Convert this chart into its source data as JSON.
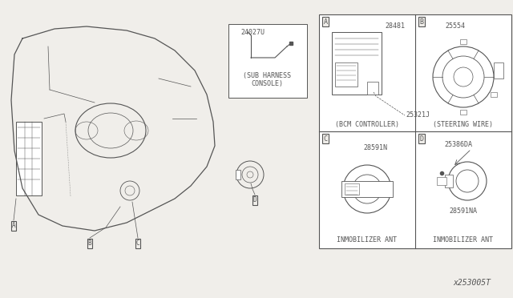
{
  "bg_color": "#f0eeea",
  "line_color": "#555555",
  "diagram_id": "x253005T",
  "parts": {
    "panel_A": {
      "label": "A",
      "part_num": "28481",
      "part_num2": "25321J",
      "desc": "(BCM CONTROLLER)"
    },
    "panel_B": {
      "label": "B",
      "part_num": "25554",
      "desc": "(STEERING WIRE)"
    },
    "panel_C": {
      "label": "C",
      "part_num": "28591N",
      "desc": "INMOBILIZER ANT"
    },
    "panel_D": {
      "label": "D",
      "part_num": "25386DA",
      "part_num2": "28591NA",
      "desc": "INMOBILIZER ANT"
    }
  },
  "sub_harness": {
    "part_num": "24027U",
    "desc1": "(SUB HARNESS",
    "desc2": "CONSOLE)"
  },
  "font_size_desc": 6.0,
  "font_size_partnum": 6.0
}
